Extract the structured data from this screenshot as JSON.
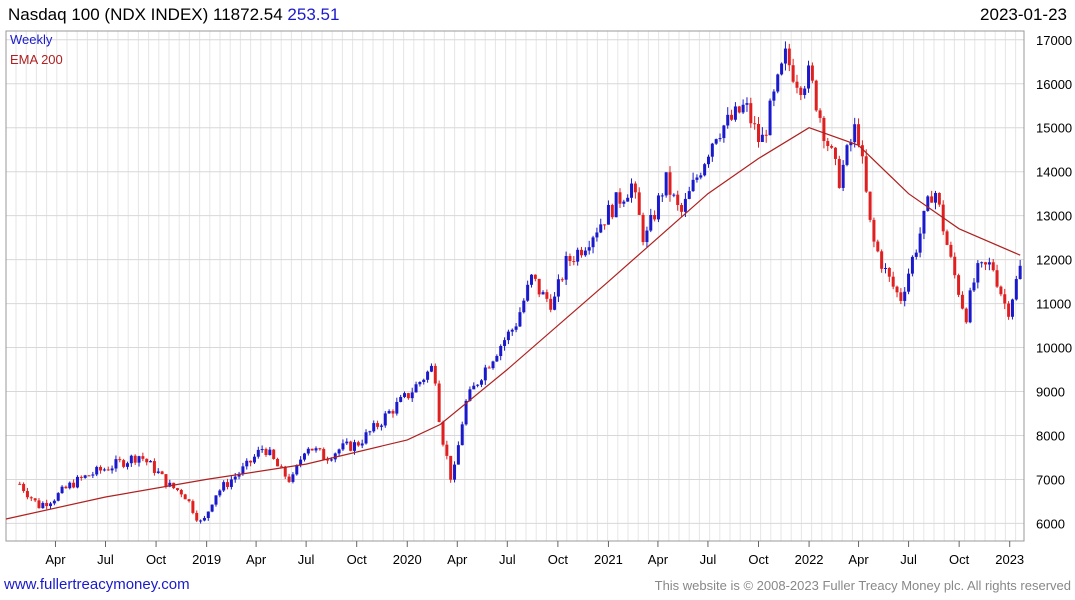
{
  "header": {
    "title": "Nasdaq 100 (NDX INDEX) 11872.54",
    "change": "253.51",
    "date": "2023-01-23"
  },
  "legend": {
    "weekly": "Weekly",
    "ema": "EMA 200"
  },
  "footer": {
    "site": "www.fullertreacymoney.com",
    "copyright": "This website is © 2008-2023 Fuller Treacy Money plc. All rights reserved"
  },
  "colors": {
    "up": "#1a1acc",
    "down": "#e02020",
    "ema": "#b02020",
    "grid": "#e6e6e6"
  },
  "chart_data": {
    "type": "line",
    "x_ticks": [
      "Apr",
      "Jul",
      "Oct",
      "2019",
      "Apr",
      "Jul",
      "Oct",
      "2020",
      "Apr",
      "Jul",
      "Oct",
      "2021",
      "Apr",
      "Jul",
      "Oct",
      "2022",
      "Apr",
      "Jul",
      "Oct",
      "2023"
    ],
    "y_ticks": [
      "6000",
      "7000",
      "8000",
      "9000",
      "10000",
      "11000",
      "12000",
      "13000",
      "14000",
      "15000",
      "16000",
      "17000"
    ],
    "ylim": [
      5600,
      17200
    ],
    "series": [
      {
        "name": "Weekly",
        "style": "candlestick-close",
        "x": [
          "2018-01-26",
          "2018-03-01",
          "2018-04-01",
          "2018-05-01",
          "2018-06-01",
          "2018-07-01",
          "2018-08-01",
          "2018-09-01",
          "2018-10-01",
          "2018-10-25",
          "2018-11-20",
          "2018-12-24",
          "2019-01-15",
          "2019-02-15",
          "2019-03-15",
          "2019-04-15",
          "2019-05-15",
          "2019-06-05",
          "2019-07-01",
          "2019-08-05",
          "2019-09-01",
          "2019-10-01",
          "2019-11-01",
          "2019-12-01",
          "2020-01-01",
          "2020-02-19",
          "2020-03-01",
          "2020-03-23",
          "2020-04-15",
          "2020-05-15",
          "2020-06-15",
          "2020-07-15",
          "2020-08-15",
          "2020-09-01",
          "2020-09-23",
          "2020-10-15",
          "2020-11-15",
          "2020-12-15",
          "2021-01-15",
          "2021-02-12",
          "2021-03-08",
          "2021-04-15",
          "2021-05-12",
          "2021-06-15",
          "2021-07-15",
          "2021-08-15",
          "2021-09-07",
          "2021-10-05",
          "2021-11-19",
          "2021-12-15",
          "2022-01-01",
          "2022-01-27",
          "2022-02-24",
          "2022-03-29",
          "2022-04-25",
          "2022-05-24",
          "2022-06-16",
          "2022-07-15",
          "2022-08-16",
          "2022-09-15",
          "2022-10-13",
          "2022-11-01",
          "2022-11-30",
          "2022-12-28",
          "2023-01-20"
        ],
        "values": [
          6900,
          6400,
          6600,
          6900,
          7100,
          7250,
          7400,
          7550,
          7200,
          6850,
          6700,
          5950,
          6650,
          7000,
          7300,
          7750,
          7200,
          6950,
          7800,
          7500,
          7700,
          7800,
          8150,
          8550,
          8900,
          9600,
          8200,
          6900,
          8700,
          9400,
          10000,
          10500,
          11600,
          11200,
          11000,
          11900,
          12300,
          12800,
          13300,
          13700,
          12400,
          13800,
          13000,
          14000,
          14900,
          15200,
          15500,
          14600,
          16600,
          16000,
          16200,
          15000,
          13800,
          15100,
          12500,
          11600,
          11100,
          12300,
          13700,
          12000,
          10700,
          11700,
          11900,
          10800,
          11800
        ]
      },
      {
        "name": "EMA 200",
        "x": [
          "2018-01-01",
          "2018-07-01",
          "2019-01-01",
          "2019-07-01",
          "2020-01-01",
          "2020-03-01",
          "2020-07-01",
          "2021-01-01",
          "2021-07-01",
          "2021-10-01",
          "2022-01-01",
          "2022-04-01",
          "2022-07-01",
          "2022-10-01",
          "2023-01-20"
        ],
        "values": [
          6100,
          6600,
          7000,
          7350,
          7900,
          8250,
          9500,
          11500,
          13500,
          14300,
          15000,
          14600,
          13500,
          12700,
          12100
        ]
      }
    ]
  }
}
